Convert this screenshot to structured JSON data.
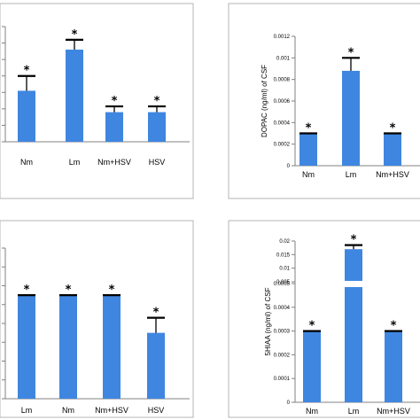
{
  "chart_data": [
    {
      "id": "top-left",
      "type": "bar",
      "categories": [
        "Nm",
        "Lm",
        "Nm+HSV",
        "HSV"
      ],
      "values": [
        3.1,
        5.6,
        1.8,
        1.8
      ],
      "errors": [
        0.9,
        0.6,
        0.35,
        0.35
      ],
      "markers": [
        "*",
        "*",
        "*",
        "*"
      ],
      "ylim": [
        0,
        7
      ],
      "ylabel": "",
      "grid": false
    },
    {
      "id": "top-right",
      "type": "bar",
      "categories": [
        "Nm",
        "Lm",
        "Nm+HSV"
      ],
      "values": [
        0.0003,
        0.00088,
        0.0003
      ],
      "errors": [
        0,
        0.00012,
        0
      ],
      "markers": [
        "*",
        "*",
        "*"
      ],
      "ylim": [
        0,
        0.0012
      ],
      "yticks": [
        "0",
        "0.0002",
        "0.0004",
        "0.0006",
        "0.0008",
        "0.001",
        "0.0012"
      ],
      "ylabel": "DOPAC (ng/ml) of CSF",
      "grid": false
    },
    {
      "id": "bottom-left",
      "type": "bar",
      "categories": [
        "Lm",
        "Nm",
        "Nm+HSV",
        "HSV"
      ],
      "values": [
        5.5,
        5.5,
        5.5,
        3.5
      ],
      "errors": [
        0,
        0,
        0,
        0.8
      ],
      "markers": [
        "*",
        "*",
        "*",
        "*"
      ],
      "ylim": [
        0,
        8
      ],
      "ylabel": "",
      "grid": false
    },
    {
      "id": "bottom-right",
      "type": "bar",
      "categories": [
        "Nm",
        "Lm",
        "Nm+HSV"
      ],
      "values": [
        0.0003,
        0.017,
        0.0003
      ],
      "errors": [
        0,
        0.0015,
        0
      ],
      "markers": [
        "*",
        "*",
        "*"
      ],
      "broken_axis": {
        "lower_ticks": [
          "0",
          "0.0001",
          "0.0002",
          "0.0003",
          "0.0004",
          "0.0005"
        ],
        "upper_ticks": [
          "0.005",
          "0.01",
          "0.015",
          "0.02"
        ]
      },
      "ylabel": "5HIAA (ng/ml) of CSF",
      "grid": false
    }
  ]
}
